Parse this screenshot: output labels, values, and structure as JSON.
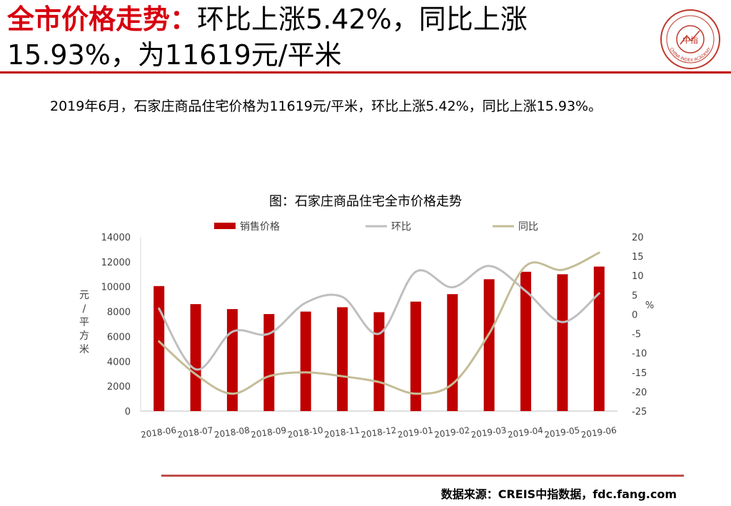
{
  "header": {
    "title_highlight": "全市价格走势：",
    "title_line1_rest": "环比上涨5.42%，同比上涨",
    "title_line2": "15.93%，为11619元/平米"
  },
  "logo": {
    "text": "中指",
    "caption": "CHINA INDEX ACADEMY"
  },
  "summary": "2019年6月，石家庄商品住宅价格为11619元/平米，环比上涨5.42%，同比上涨15.93%。",
  "source": "数据来源：CREIS中指数据，fdc.fang.com",
  "colors": {
    "accent": "#d7000f",
    "bar": "#c00000",
    "mom_line": "#bfbfbf",
    "yoy_line": "#c4bd97"
  },
  "chart_data": {
    "type": "bar",
    "title": "图：石家庄商品住宅全市价格走势",
    "categories": [
      "2018-06",
      "2018-07",
      "2018-08",
      "2018-09",
      "2018-10",
      "2018-11",
      "2018-12",
      "2019-01",
      "2019-02",
      "2019-03",
      "2019-04",
      "2019-05",
      "2019-06"
    ],
    "series": [
      {
        "name": "销售价格",
        "type": "bar",
        "axis": "left",
        "values": [
          10050,
          8600,
          8200,
          7800,
          8000,
          8350,
          7950,
          8800,
          9400,
          10600,
          11200,
          11000,
          11619
        ]
      },
      {
        "name": "环比",
        "type": "line",
        "axis": "right",
        "values": [
          1.5,
          -14.2,
          -4.5,
          -5.0,
          3.0,
          4.5,
          -5.0,
          11.0,
          7.0,
          12.5,
          6.0,
          -2.0,
          5.42
        ]
      },
      {
        "name": "同比",
        "type": "line",
        "axis": "right",
        "values": [
          -7.0,
          -15.5,
          -20.5,
          -16.0,
          -15.0,
          -16.0,
          -17.5,
          -20.5,
          -18.0,
          -5.0,
          12.5,
          11.5,
          15.93
        ]
      }
    ],
    "ylabel_left": "元/平方米",
    "ylabel_right": "%",
    "ylim_left": [
      0,
      14000
    ],
    "yticks_left": [
      0,
      2000,
      4000,
      6000,
      8000,
      10000,
      12000,
      14000
    ],
    "ylim_right": [
      -25,
      20
    ],
    "yticks_right": [
      -25,
      -20,
      -15,
      -10,
      -5,
      0,
      5,
      10,
      15,
      20
    ],
    "legend": "top",
    "grid": false
  }
}
